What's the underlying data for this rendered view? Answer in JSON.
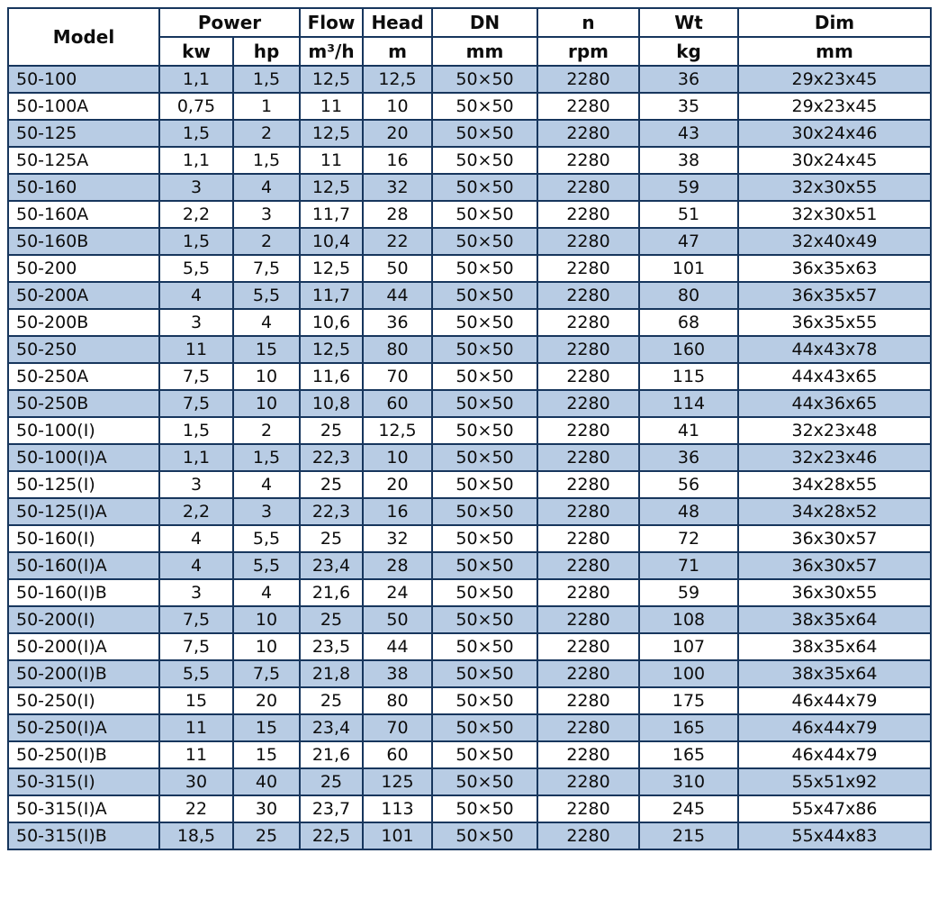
{
  "table": {
    "colors": {
      "row_alt": "#b8cce4",
      "border": "#17365d"
    },
    "headers": {
      "model": "Model",
      "power": "Power",
      "kw": "kw",
      "hp": "hp",
      "flow": "Flow",
      "flow_unit": "m³/h",
      "head": "Head",
      "head_unit": "m",
      "dn": "DN",
      "dn_unit": "mm",
      "n": "n",
      "n_unit": "rpm",
      "wt": "Wt",
      "wt_unit": "kg",
      "dim": "Dim",
      "dim_unit": "mm"
    },
    "column_keys": [
      "model",
      "kw",
      "hp",
      "flow",
      "head",
      "dn",
      "n",
      "wt",
      "dim"
    ],
    "rows": [
      [
        "50-100",
        "1,1",
        "1,5",
        "12,5",
        "12,5",
        "50×50",
        "2280",
        "36",
        "29x23x45"
      ],
      [
        "50-100A",
        "0,75",
        "1",
        "11",
        "10",
        "50×50",
        "2280",
        "35",
        "29x23x45"
      ],
      [
        "50-125",
        "1,5",
        "2",
        "12,5",
        "20",
        "50×50",
        "2280",
        "43",
        "30x24x46"
      ],
      [
        "50-125A",
        "1,1",
        "1,5",
        "11",
        "16",
        "50×50",
        "2280",
        "38",
        "30x24x45"
      ],
      [
        "50-160",
        "3",
        "4",
        "12,5",
        "32",
        "50×50",
        "2280",
        "59",
        "32x30x55"
      ],
      [
        "50-160A",
        "2,2",
        "3",
        "11,7",
        "28",
        "50×50",
        "2280",
        "51",
        "32x30x51"
      ],
      [
        "50-160B",
        "1,5",
        "2",
        "10,4",
        "22",
        "50×50",
        "2280",
        "47",
        "32x40x49"
      ],
      [
        "50-200",
        "5,5",
        "7,5",
        "12,5",
        "50",
        "50×50",
        "2280",
        "101",
        "36x35x63"
      ],
      [
        "50-200A",
        "4",
        "5,5",
        "11,7",
        "44",
        "50×50",
        "2280",
        "80",
        "36x35x57"
      ],
      [
        "50-200B",
        "3",
        "4",
        "10,6",
        "36",
        "50×50",
        "2280",
        "68",
        "36x35x55"
      ],
      [
        "50-250",
        "11",
        "15",
        "12,5",
        "80",
        "50×50",
        "2280",
        "160",
        "44x43x78"
      ],
      [
        "50-250A",
        "7,5",
        "10",
        "11,6",
        "70",
        "50×50",
        "2280",
        "115",
        "44x43x65"
      ],
      [
        "50-250B",
        "7,5",
        "10",
        "10,8",
        "60",
        "50×50",
        "2280",
        "114",
        "44x36x65"
      ],
      [
        "50-100(I)",
        "1,5",
        "2",
        "25",
        "12,5",
        "50×50",
        "2280",
        "41",
        "32x23x48"
      ],
      [
        "50-100(I)A",
        "1,1",
        "1,5",
        "22,3",
        "10",
        "50×50",
        "2280",
        "36",
        "32x23x46"
      ],
      [
        "50-125(I)",
        "3",
        "4",
        "25",
        "20",
        "50×50",
        "2280",
        "56",
        "34x28x55"
      ],
      [
        "50-125(I)A",
        "2,2",
        "3",
        "22,3",
        "16",
        "50×50",
        "2280",
        "48",
        "34x28x52"
      ],
      [
        "50-160(I)",
        "4",
        "5,5",
        "25",
        "32",
        "50×50",
        "2280",
        "72",
        "36x30x57"
      ],
      [
        "50-160(I)A",
        "4",
        "5,5",
        "23,4",
        "28",
        "50×50",
        "2280",
        "71",
        "36x30x57"
      ],
      [
        "50-160(I)B",
        "3",
        "4",
        "21,6",
        "24",
        "50×50",
        "2280",
        "59",
        "36x30x55"
      ],
      [
        "50-200(I)",
        "7,5",
        "10",
        "25",
        "50",
        "50×50",
        "2280",
        "108",
        "38x35x64"
      ],
      [
        "50-200(I)A",
        "7,5",
        "10",
        "23,5",
        "44",
        "50×50",
        "2280",
        "107",
        "38x35x64"
      ],
      [
        "50-200(I)B",
        "5,5",
        "7,5",
        "21,8",
        "38",
        "50×50",
        "2280",
        "100",
        "38x35x64"
      ],
      [
        "50-250(I)",
        "15",
        "20",
        "25",
        "80",
        "50×50",
        "2280",
        "175",
        "46x44x79"
      ],
      [
        "50-250(I)A",
        "11",
        "15",
        "23,4",
        "70",
        "50×50",
        "2280",
        "165",
        "46x44x79"
      ],
      [
        "50-250(I)B",
        "11",
        "15",
        "21,6",
        "60",
        "50×50",
        "2280",
        "165",
        "46x44x79"
      ],
      [
        "50-315(I)",
        "30",
        "40",
        "25",
        "125",
        "50×50",
        "2280",
        "310",
        "55x51x92"
      ],
      [
        "50-315(I)A",
        "22",
        "30",
        "23,7",
        "113",
        "50×50",
        "2280",
        "245",
        "55x47x86"
      ],
      [
        "50-315(I)B",
        "18,5",
        "25",
        "22,5",
        "101",
        "50×50",
        "2280",
        "215",
        "55x44x83"
      ]
    ]
  }
}
